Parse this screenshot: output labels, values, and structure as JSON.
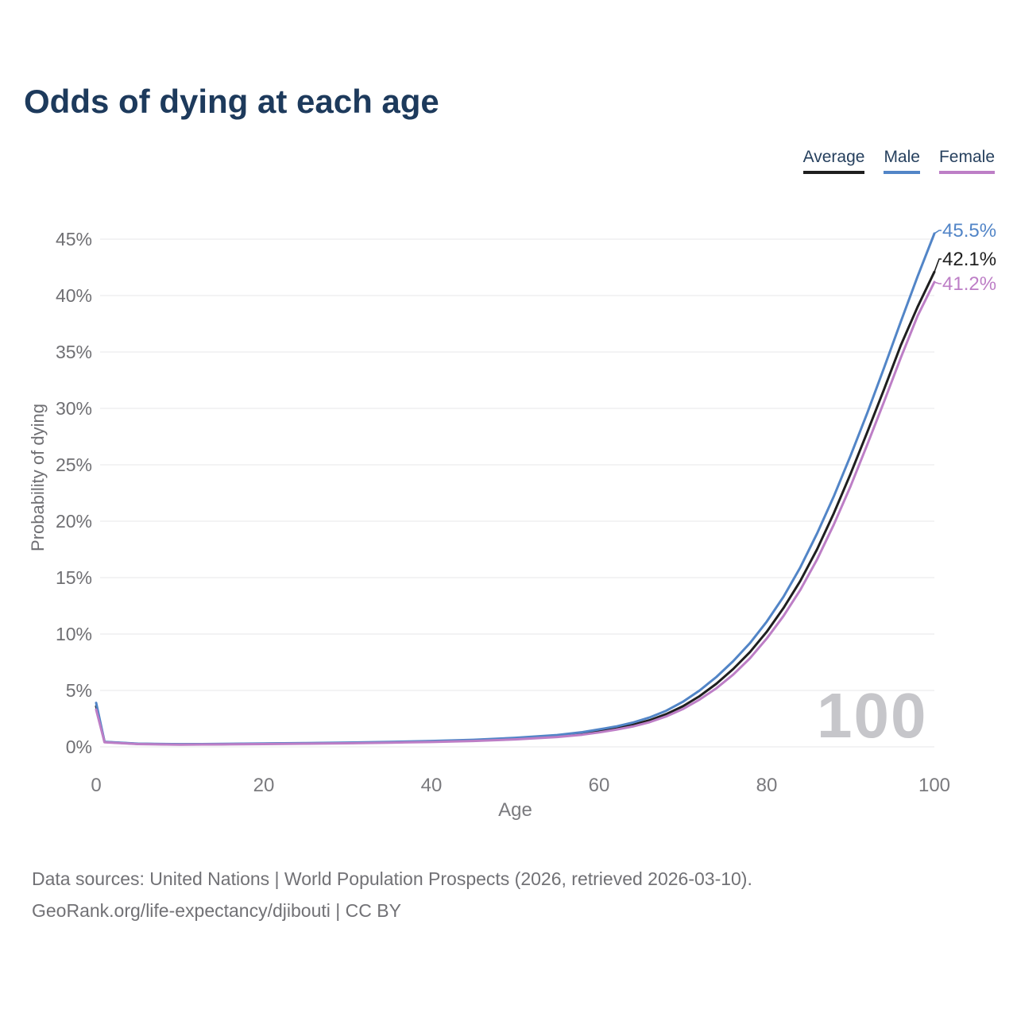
{
  "title": "Odds of dying at each age",
  "legend": [
    {
      "label": "Average",
      "color": "#1f1f1f"
    },
    {
      "label": "Male",
      "color": "#5285c7"
    },
    {
      "label": "Female",
      "color": "#bd7ec6"
    }
  ],
  "chart_data": {
    "type": "line",
    "title": "Odds of dying at each age",
    "xlabel": "Age",
    "ylabel": "Probability of dying",
    "xlim": [
      0,
      100
    ],
    "ylim": [
      0,
      45
    ],
    "xticks": [
      0,
      20,
      40,
      60,
      80,
      100
    ],
    "yticks": [
      0,
      5,
      10,
      15,
      20,
      25,
      30,
      35,
      40,
      45
    ],
    "ytick_suffix": "%",
    "grid": "horizontal",
    "legend_position": "top-right",
    "watermark": "100",
    "x": [
      0,
      1,
      5,
      10,
      15,
      20,
      25,
      30,
      35,
      40,
      45,
      50,
      55,
      58,
      60,
      62,
      64,
      66,
      68,
      70,
      72,
      74,
      76,
      78,
      80,
      82,
      84,
      86,
      88,
      90,
      92,
      94,
      96,
      98,
      100
    ],
    "series": [
      {
        "name": "Average",
        "color": "#1f1f1f",
        "end_label": "42.1%",
        "values": [
          3.6,
          0.43,
          0.27,
          0.22,
          0.24,
          0.28,
          0.31,
          0.35,
          0.4,
          0.47,
          0.57,
          0.73,
          0.95,
          1.18,
          1.4,
          1.65,
          1.95,
          2.35,
          2.9,
          3.6,
          4.5,
          5.6,
          6.9,
          8.4,
          10.2,
          12.3,
          14.7,
          17.5,
          20.7,
          24.2,
          27.9,
          31.7,
          35.6,
          39.0,
          42.1
        ]
      },
      {
        "name": "Male",
        "color": "#5285c7",
        "end_label": "45.5%",
        "values": [
          3.9,
          0.45,
          0.28,
          0.24,
          0.26,
          0.3,
          0.34,
          0.38,
          0.44,
          0.52,
          0.63,
          0.8,
          1.05,
          1.3,
          1.55,
          1.8,
          2.15,
          2.6,
          3.2,
          4.0,
          5.0,
          6.2,
          7.6,
          9.2,
          11.1,
          13.3,
          15.9,
          18.9,
          22.2,
          25.8,
          29.6,
          33.6,
          37.7,
          41.7,
          45.5
        ]
      },
      {
        "name": "Female",
        "color": "#bd7ec6",
        "end_label": "41.2%",
        "values": [
          3.3,
          0.4,
          0.25,
          0.2,
          0.22,
          0.25,
          0.28,
          0.32,
          0.37,
          0.43,
          0.52,
          0.66,
          0.87,
          1.08,
          1.28,
          1.52,
          1.8,
          2.18,
          2.7,
          3.35,
          4.2,
          5.2,
          6.4,
          7.85,
          9.6,
          11.6,
          13.9,
          16.6,
          19.7,
          23.1,
          26.8,
          30.6,
          34.5,
          38.2,
          41.2
        ]
      }
    ]
  },
  "footer": {
    "line1": "Data sources: United Nations | World Population Prospects (2026, retrieved 2026-03-10).",
    "line2": "GeoRank.org/life-expectancy/djibouti | CC BY"
  }
}
